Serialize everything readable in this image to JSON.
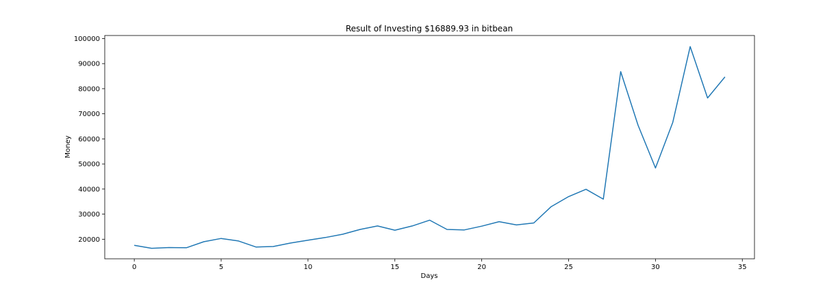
{
  "chart_data": {
    "type": "line",
    "title": "Result of Investing $16889.93 in bitbean",
    "xlabel": "Days",
    "ylabel": "Money",
    "xlim": [
      -1.7,
      35.7
    ],
    "ylim": [
      12200,
      101200
    ],
    "xticks": [
      0,
      5,
      10,
      15,
      20,
      25,
      30,
      35
    ],
    "yticks": [
      20000,
      30000,
      40000,
      50000,
      60000,
      70000,
      80000,
      90000,
      100000
    ],
    "grid": false,
    "color": "#1f77b4",
    "x": [
      0,
      1,
      2,
      3,
      4,
      5,
      6,
      7,
      8,
      9,
      10,
      11,
      12,
      13,
      14,
      15,
      16,
      17,
      18,
      19,
      20,
      21,
      22,
      23,
      24,
      25,
      26,
      27,
      28,
      29,
      30,
      31,
      32,
      33,
      34
    ],
    "values": [
      17600,
      16400,
      16700,
      16600,
      19000,
      20300,
      19300,
      16900,
      17100,
      18500,
      19600,
      20700,
      22000,
      23900,
      25300,
      23600,
      25300,
      27600,
      23900,
      23700,
      25200,
      27000,
      25700,
      26500,
      33000,
      37000,
      39900,
      36000,
      86800,
      65400,
      48400,
      66600,
      96800,
      76300,
      84700
    ]
  }
}
